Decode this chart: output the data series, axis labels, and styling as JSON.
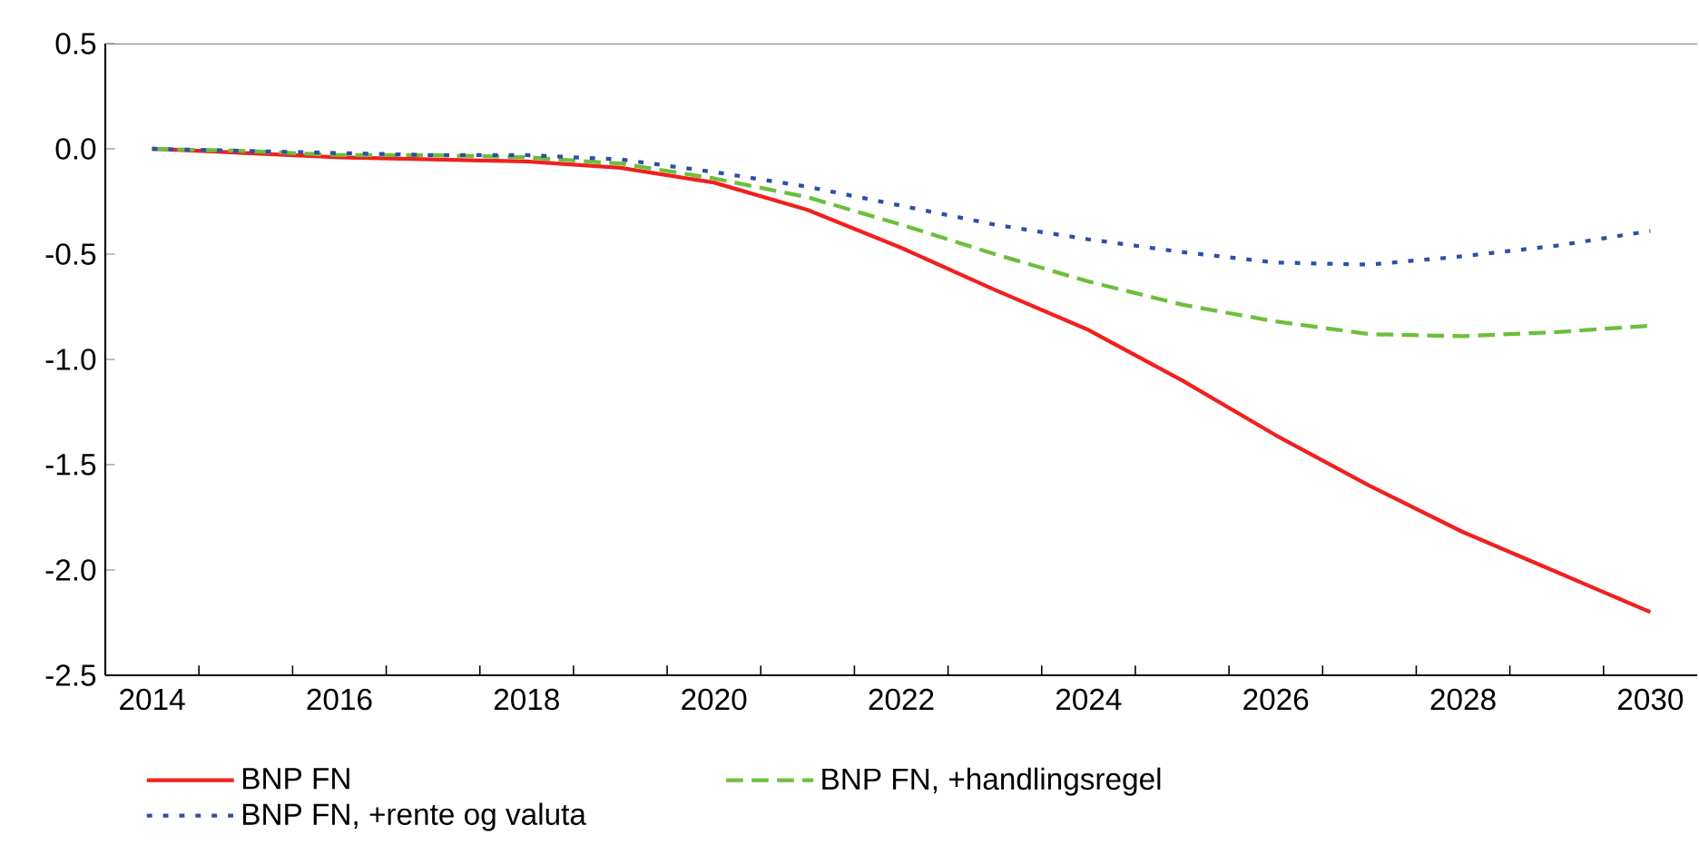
{
  "chart_data": {
    "type": "line",
    "x": [
      2014,
      2015,
      2016,
      2017,
      2018,
      2019,
      2020,
      2021,
      2022,
      2023,
      2024,
      2025,
      2026,
      2027,
      2028,
      2029,
      2030
    ],
    "series": [
      {
        "name": "BNP FN",
        "color": "#f0201e",
        "line_style": "solid",
        "values": [
          0,
          -0.02,
          -0.04,
          -0.05,
          -0.06,
          -0.09,
          -0.16,
          -0.29,
          -0.47,
          -0.67,
          -0.86,
          -1.1,
          -1.36,
          -1.6,
          -1.82,
          -2.01,
          -2.2
        ]
      },
      {
        "name": "BNP FN, +handlingsregel",
        "color": "#6cbf3c",
        "line_style": "dashed",
        "values": [
          0,
          -0.01,
          -0.03,
          -0.03,
          -0.04,
          -0.07,
          -0.14,
          -0.23,
          -0.36,
          -0.5,
          -0.63,
          -0.74,
          -0.82,
          -0.88,
          -0.89,
          -0.87,
          -0.84
        ]
      },
      {
        "name": "BNP FN, +rente og valuta",
        "color": "#2e4fa8",
        "line_style": "dotted",
        "values": [
          0,
          -0.01,
          -0.02,
          -0.03,
          -0.03,
          -0.05,
          -0.11,
          -0.18,
          -0.27,
          -0.36,
          -0.43,
          -0.49,
          -0.54,
          -0.55,
          -0.51,
          -0.46,
          -0.39
        ]
      }
    ],
    "xlim": [
      2013.5,
      2030.5
    ],
    "xticks": [
      2014,
      2016,
      2018,
      2020,
      2022,
      2024,
      2026,
      2028,
      2030,
      {
        "value": 2014.5,
        "label": null
      },
      {
        "value": 2015.5,
        "label": null
      },
      {
        "value": 2016.5,
        "label": null
      },
      {
        "value": 2017.5,
        "label": null
      },
      {
        "value": 2018.5,
        "label": null
      },
      {
        "value": 2019.5,
        "label": null
      },
      {
        "value": 2020.5,
        "label": null
      },
      {
        "value": 2021.5,
        "label": null
      },
      {
        "value": 2022.5,
        "label": null
      },
      {
        "value": 2023.5,
        "label": null
      },
      {
        "value": 2024.5,
        "label": null
      },
      {
        "value": 2025.5,
        "label": null
      },
      {
        "value": 2026.5,
        "label": null
      },
      {
        "value": 2027.5,
        "label": null
      },
      {
        "value": 2028.5,
        "label": null
      },
      {
        "value": 2029.5,
        "label": null
      }
    ],
    "ylim": [
      -2.5,
      0.5
    ],
    "yticks": [
      {
        "value": -2.5,
        "label": "-2.5"
      },
      {
        "value": -2.0,
        "label": "-2.0"
      },
      {
        "value": -1.5,
        "label": "-1.5"
      },
      {
        "value": -1.0,
        "label": "-1.0"
      },
      {
        "value": -0.5,
        "label": "-0.5"
      },
      {
        "value": 0,
        "label": "0.0"
      },
      {
        "value": 0.5,
        "label": "0.5"
      }
    ],
    "legend": "bottom"
  }
}
